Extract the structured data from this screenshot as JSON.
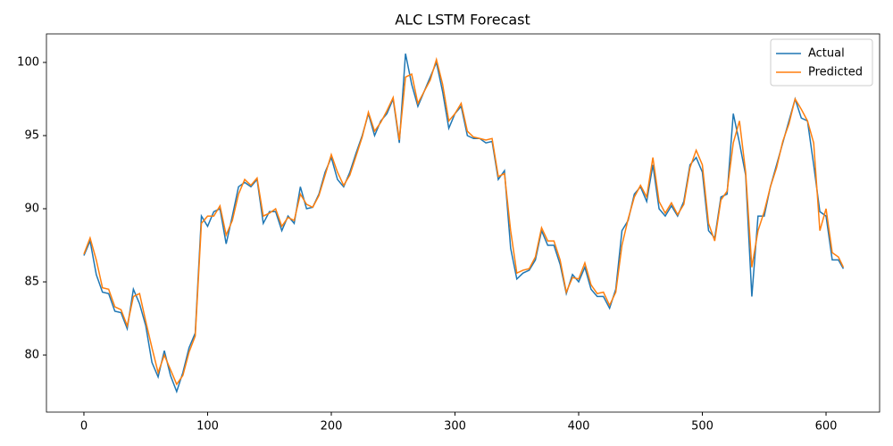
{
  "chart_data": {
    "type": "line",
    "title": "ALC LSTM Forecast",
    "x": [
      0,
      5,
      10,
      15,
      20,
      25,
      30,
      35,
      40,
      45,
      50,
      55,
      60,
      65,
      70,
      75,
      80,
      85,
      90,
      95,
      100,
      105,
      110,
      115,
      120,
      125,
      130,
      135,
      140,
      145,
      150,
      155,
      160,
      165,
      170,
      175,
      180,
      185,
      190,
      195,
      200,
      205,
      210,
      215,
      220,
      225,
      230,
      235,
      240,
      245,
      250,
      255,
      260,
      265,
      270,
      275,
      280,
      285,
      290,
      295,
      300,
      305,
      310,
      315,
      320,
      325,
      330,
      335,
      340,
      345,
      350,
      355,
      360,
      365,
      370,
      375,
      380,
      385,
      390,
      395,
      400,
      405,
      410,
      415,
      420,
      425,
      430,
      435,
      440,
      445,
      450,
      455,
      460,
      465,
      470,
      475,
      480,
      485,
      490,
      495,
      500,
      505,
      510,
      515,
      520,
      525,
      530,
      535,
      540,
      545,
      550,
      555,
      560,
      565,
      570,
      575,
      580,
      585,
      590,
      595,
      600,
      605,
      610,
      614
    ],
    "series": [
      {
        "name": "Actual",
        "color": "#1f77b4",
        "values": [
          86.8,
          87.8,
          85.5,
          84.3,
          84.2,
          83.0,
          82.9,
          81.8,
          84.5,
          83.5,
          82.0,
          79.5,
          78.5,
          80.3,
          78.6,
          77.5,
          78.8,
          80.5,
          81.5,
          89.5,
          88.8,
          89.8,
          90.0,
          87.6,
          89.5,
          91.5,
          91.8,
          91.5,
          92.0,
          89.0,
          89.8,
          89.8,
          88.5,
          89.5,
          89.0,
          91.5,
          90.0,
          90.1,
          91.0,
          92.5,
          93.5,
          92.0,
          91.5,
          92.5,
          93.8,
          95.0,
          96.5,
          95.0,
          96.0,
          96.5,
          97.5,
          94.5,
          100.6,
          98.5,
          97.0,
          98.0,
          99.0,
          100.0,
          98.0,
          95.5,
          96.5,
          97.0,
          95.0,
          94.8,
          94.8,
          94.5,
          94.6,
          92.0,
          92.6,
          87.3,
          85.2,
          85.6,
          85.8,
          86.5,
          88.5,
          87.5,
          87.5,
          86.2,
          84.2,
          85.5,
          85.0,
          86.0,
          84.5,
          84.0,
          84.0,
          83.2,
          84.5,
          88.5,
          89.2,
          91.0,
          91.5,
          90.5,
          93.0,
          90.0,
          89.5,
          90.2,
          89.5,
          90.5,
          93.0,
          93.5,
          92.5,
          88.5,
          88.0,
          90.8,
          91.0,
          96.5,
          94.5,
          92.3,
          84.0,
          89.5,
          89.5,
          91.5,
          93.0,
          94.5,
          96.0,
          97.5,
          96.2,
          96.0,
          93.0,
          89.8,
          89.5,
          86.5,
          86.5,
          85.9
        ]
      },
      {
        "name": "Predicted",
        "color": "#ff7f0e",
        "values": [
          86.9,
          88.0,
          86.5,
          84.6,
          84.5,
          83.3,
          83.1,
          82.0,
          84.0,
          84.2,
          82.3,
          80.5,
          78.8,
          80.0,
          79.0,
          78.0,
          78.6,
          80.2,
          81.3,
          89.0,
          89.5,
          89.5,
          90.2,
          88.2,
          89.2,
          91.0,
          92.0,
          91.6,
          92.1,
          89.5,
          89.7,
          90.0,
          88.8,
          89.4,
          89.2,
          91.0,
          90.3,
          90.1,
          90.9,
          92.3,
          93.7,
          92.5,
          91.6,
          92.3,
          93.6,
          94.9,
          96.6,
          95.3,
          95.9,
          96.7,
          97.6,
          94.7,
          99.0,
          99.2,
          97.2,
          98.0,
          98.8,
          100.2,
          98.5,
          96.0,
          96.5,
          97.2,
          95.3,
          94.9,
          94.8,
          94.7,
          94.8,
          92.2,
          92.4,
          88.5,
          85.6,
          85.8,
          85.9,
          86.7,
          88.7,
          87.8,
          87.8,
          86.5,
          84.3,
          85.3,
          85.2,
          86.3,
          84.8,
          84.2,
          84.3,
          83.4,
          84.3,
          87.5,
          89.3,
          90.8,
          91.6,
          90.8,
          93.5,
          90.5,
          89.7,
          90.4,
          89.6,
          90.3,
          92.8,
          94.0,
          93.0,
          89.0,
          87.8,
          90.6,
          91.2,
          94.5,
          96.0,
          92.5,
          86.0,
          88.5,
          89.8,
          91.5,
          92.8,
          94.6,
          95.8,
          97.5,
          96.8,
          96.0,
          94.5,
          88.5,
          90.0,
          87.0,
          86.7,
          86.0
        ]
      }
    ],
    "xlim": [
      -30.3,
      643.3
    ],
    "xticks": [
      0,
      100,
      200,
      300,
      400,
      500,
      600
    ],
    "ylim": [
      76.1,
      101.95
    ],
    "yticks": [
      80,
      85,
      90,
      95,
      100
    ],
    "legend": "upper right"
  }
}
